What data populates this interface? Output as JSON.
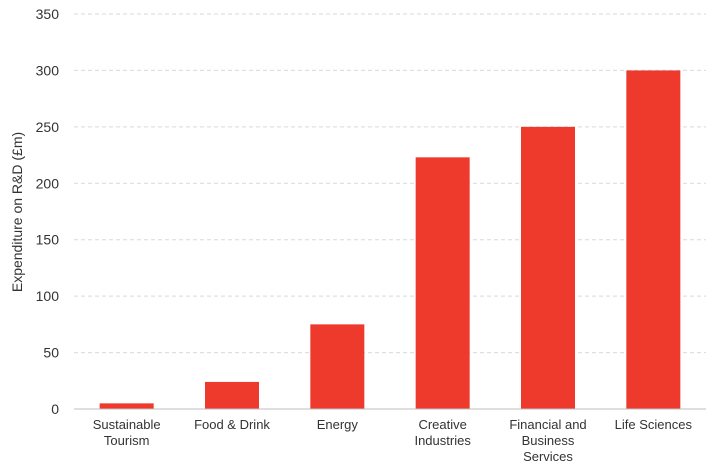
{
  "chart_data": {
    "type": "bar",
    "categories": [
      [
        "Sustainable",
        "Tourism"
      ],
      [
        "Food & Drink"
      ],
      [
        "Energy"
      ],
      [
        "Creative",
        "Industries"
      ],
      [
        "Financial and",
        "Business",
        "Services"
      ],
      [
        "Life Sciences"
      ]
    ],
    "values": [
      5,
      24,
      75,
      223,
      250,
      300
    ],
    "title": "",
    "xlabel": "",
    "ylabel": "Expenditure on R&D (£m)",
    "ylim": [
      0,
      350
    ],
    "yticks": [
      0,
      50,
      100,
      150,
      200,
      250,
      300,
      350
    ],
    "grid": true,
    "bar_color": "#ee3a2d"
  }
}
